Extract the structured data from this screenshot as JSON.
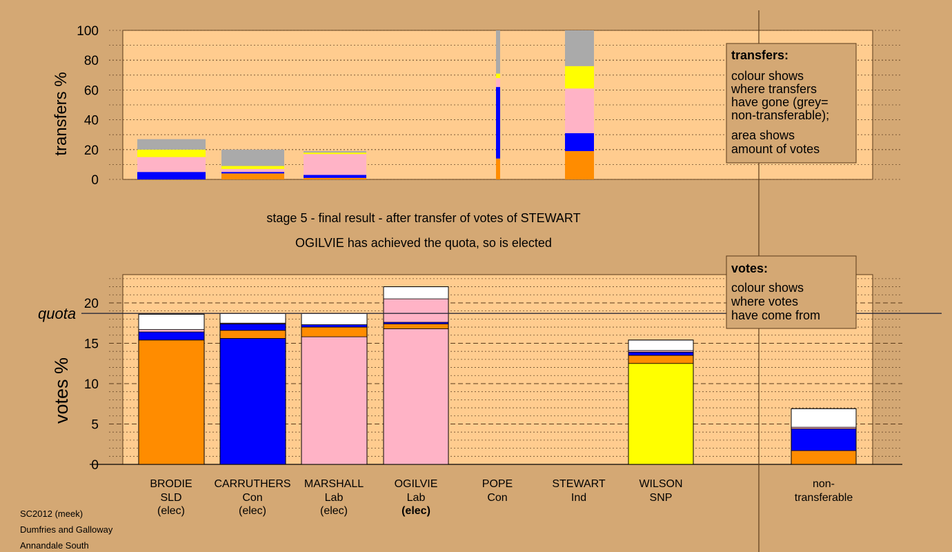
{
  "chart_data": [
    {
      "type": "bar",
      "stacked": true,
      "ylabel": "transfers %",
      "ylim": [
        0,
        100
      ],
      "yticks": [
        0,
        20,
        40,
        60,
        80,
        100
      ],
      "categories": [
        "BRODIE",
        "CARRUTHERS",
        "MARSHALL",
        "OGILVIE",
        "POPE",
        "STEWART",
        "WILSON"
      ],
      "width_note_shown": false,
      "series": [
        {
          "color": "#ff8c00",
          "values": [
            0,
            4,
            1,
            0,
            14,
            19,
            0
          ]
        },
        {
          "color": "#0000ff",
          "values": [
            5,
            1,
            2,
            0,
            48,
            12,
            0
          ]
        },
        {
          "color": "#ffb3c6",
          "values": [
            10,
            2,
            14,
            0,
            6,
            30,
            0
          ]
        },
        {
          "color": "#ffff00",
          "values": [
            5,
            2,
            1,
            0,
            3,
            15,
            0
          ]
        },
        {
          "color": "#aaaaaa",
          "values": [
            7,
            11,
            1,
            0,
            29,
            24,
            0
          ]
        }
      ],
      "legend": {
        "title": "transfers:",
        "lines": [
          "colour shows",
          "where transfers",
          "have gone (grey=",
          "non-transferable);",
          "area shows",
          "amount of votes"
        ]
      }
    },
    {
      "type": "bar",
      "stacked": true,
      "ylabel": "votes %",
      "ylim": [
        0,
        23.5
      ],
      "yticks": [
        0,
        5,
        10,
        15,
        20
      ],
      "quota": 18.7,
      "quota_label": "quota",
      "categories": [
        {
          "name": "BRODIE",
          "party": "SLD",
          "status": "(elec)",
          "bold": false
        },
        {
          "name": "CARRUTHERS",
          "party": "Con",
          "status": "(elec)",
          "bold": false
        },
        {
          "name": "MARSHALL",
          "party": "Lab",
          "status": "(elec)",
          "bold": false
        },
        {
          "name": "OGILVIE",
          "party": "Lab",
          "status": "(elec)",
          "bold": true
        },
        {
          "name": "POPE",
          "party": "Con",
          "status": "",
          "bold": false
        },
        {
          "name": "STEWART",
          "party": "Ind",
          "status": "",
          "bold": false
        },
        {
          "name": "WILSON",
          "party": "SNP",
          "status": "",
          "bold": false
        },
        {
          "name": "non-",
          "party": "transferable",
          "status": "",
          "bold": false
        }
      ],
      "series": [
        {
          "color": "#ff8c00",
          "values": [
            15.4,
            0,
            0,
            0,
            0,
            0,
            0,
            1.7
          ]
        },
        {
          "color": "#0000ff",
          "values": [
            0,
            15.6,
            0,
            0,
            0,
            0,
            0,
            2.7
          ]
        },
        {
          "color": "#ffb3c6",
          "values": [
            0,
            0,
            15.8,
            16.8,
            0,
            0,
            0,
            0
          ]
        },
        {
          "color": "#ffff00",
          "values": [
            0,
            0,
            0,
            0,
            0,
            0,
            12.5,
            0
          ]
        },
        {
          "color": "#ff8c00",
          "values": [
            0,
            1.0,
            1.2,
            0.6,
            0,
            0,
            1.0,
            0
          ]
        },
        {
          "color": "#0000ff",
          "values": [
            1.0,
            0.8,
            0.3,
            0.2,
            0,
            0,
            0.4,
            0
          ]
        },
        {
          "color": "#ffb3c6",
          "values": [
            0.3,
            0.1,
            0,
            2.9,
            0,
            0,
            0.2,
            0.2
          ]
        },
        {
          "color": "#ffffff",
          "values": [
            1.9,
            1.2,
            1.4,
            1.5,
            0,
            0,
            1.3,
            2.3
          ]
        }
      ],
      "legend": {
        "title": "votes:",
        "lines": [
          "colour shows",
          "where votes",
          "have come from"
        ]
      }
    }
  ],
  "captions": {
    "stage": "stage 5 - final result - after transfer of votes of STEWART",
    "result": "OGILVIE has achieved the quota, so is elected"
  },
  "footer": [
    "SC2012 (meek)",
    "Dumfries and Galloway",
    "Annandale South"
  ],
  "colors": {
    "background": "#d4a874",
    "plot_bg": "#ffcc8f"
  }
}
